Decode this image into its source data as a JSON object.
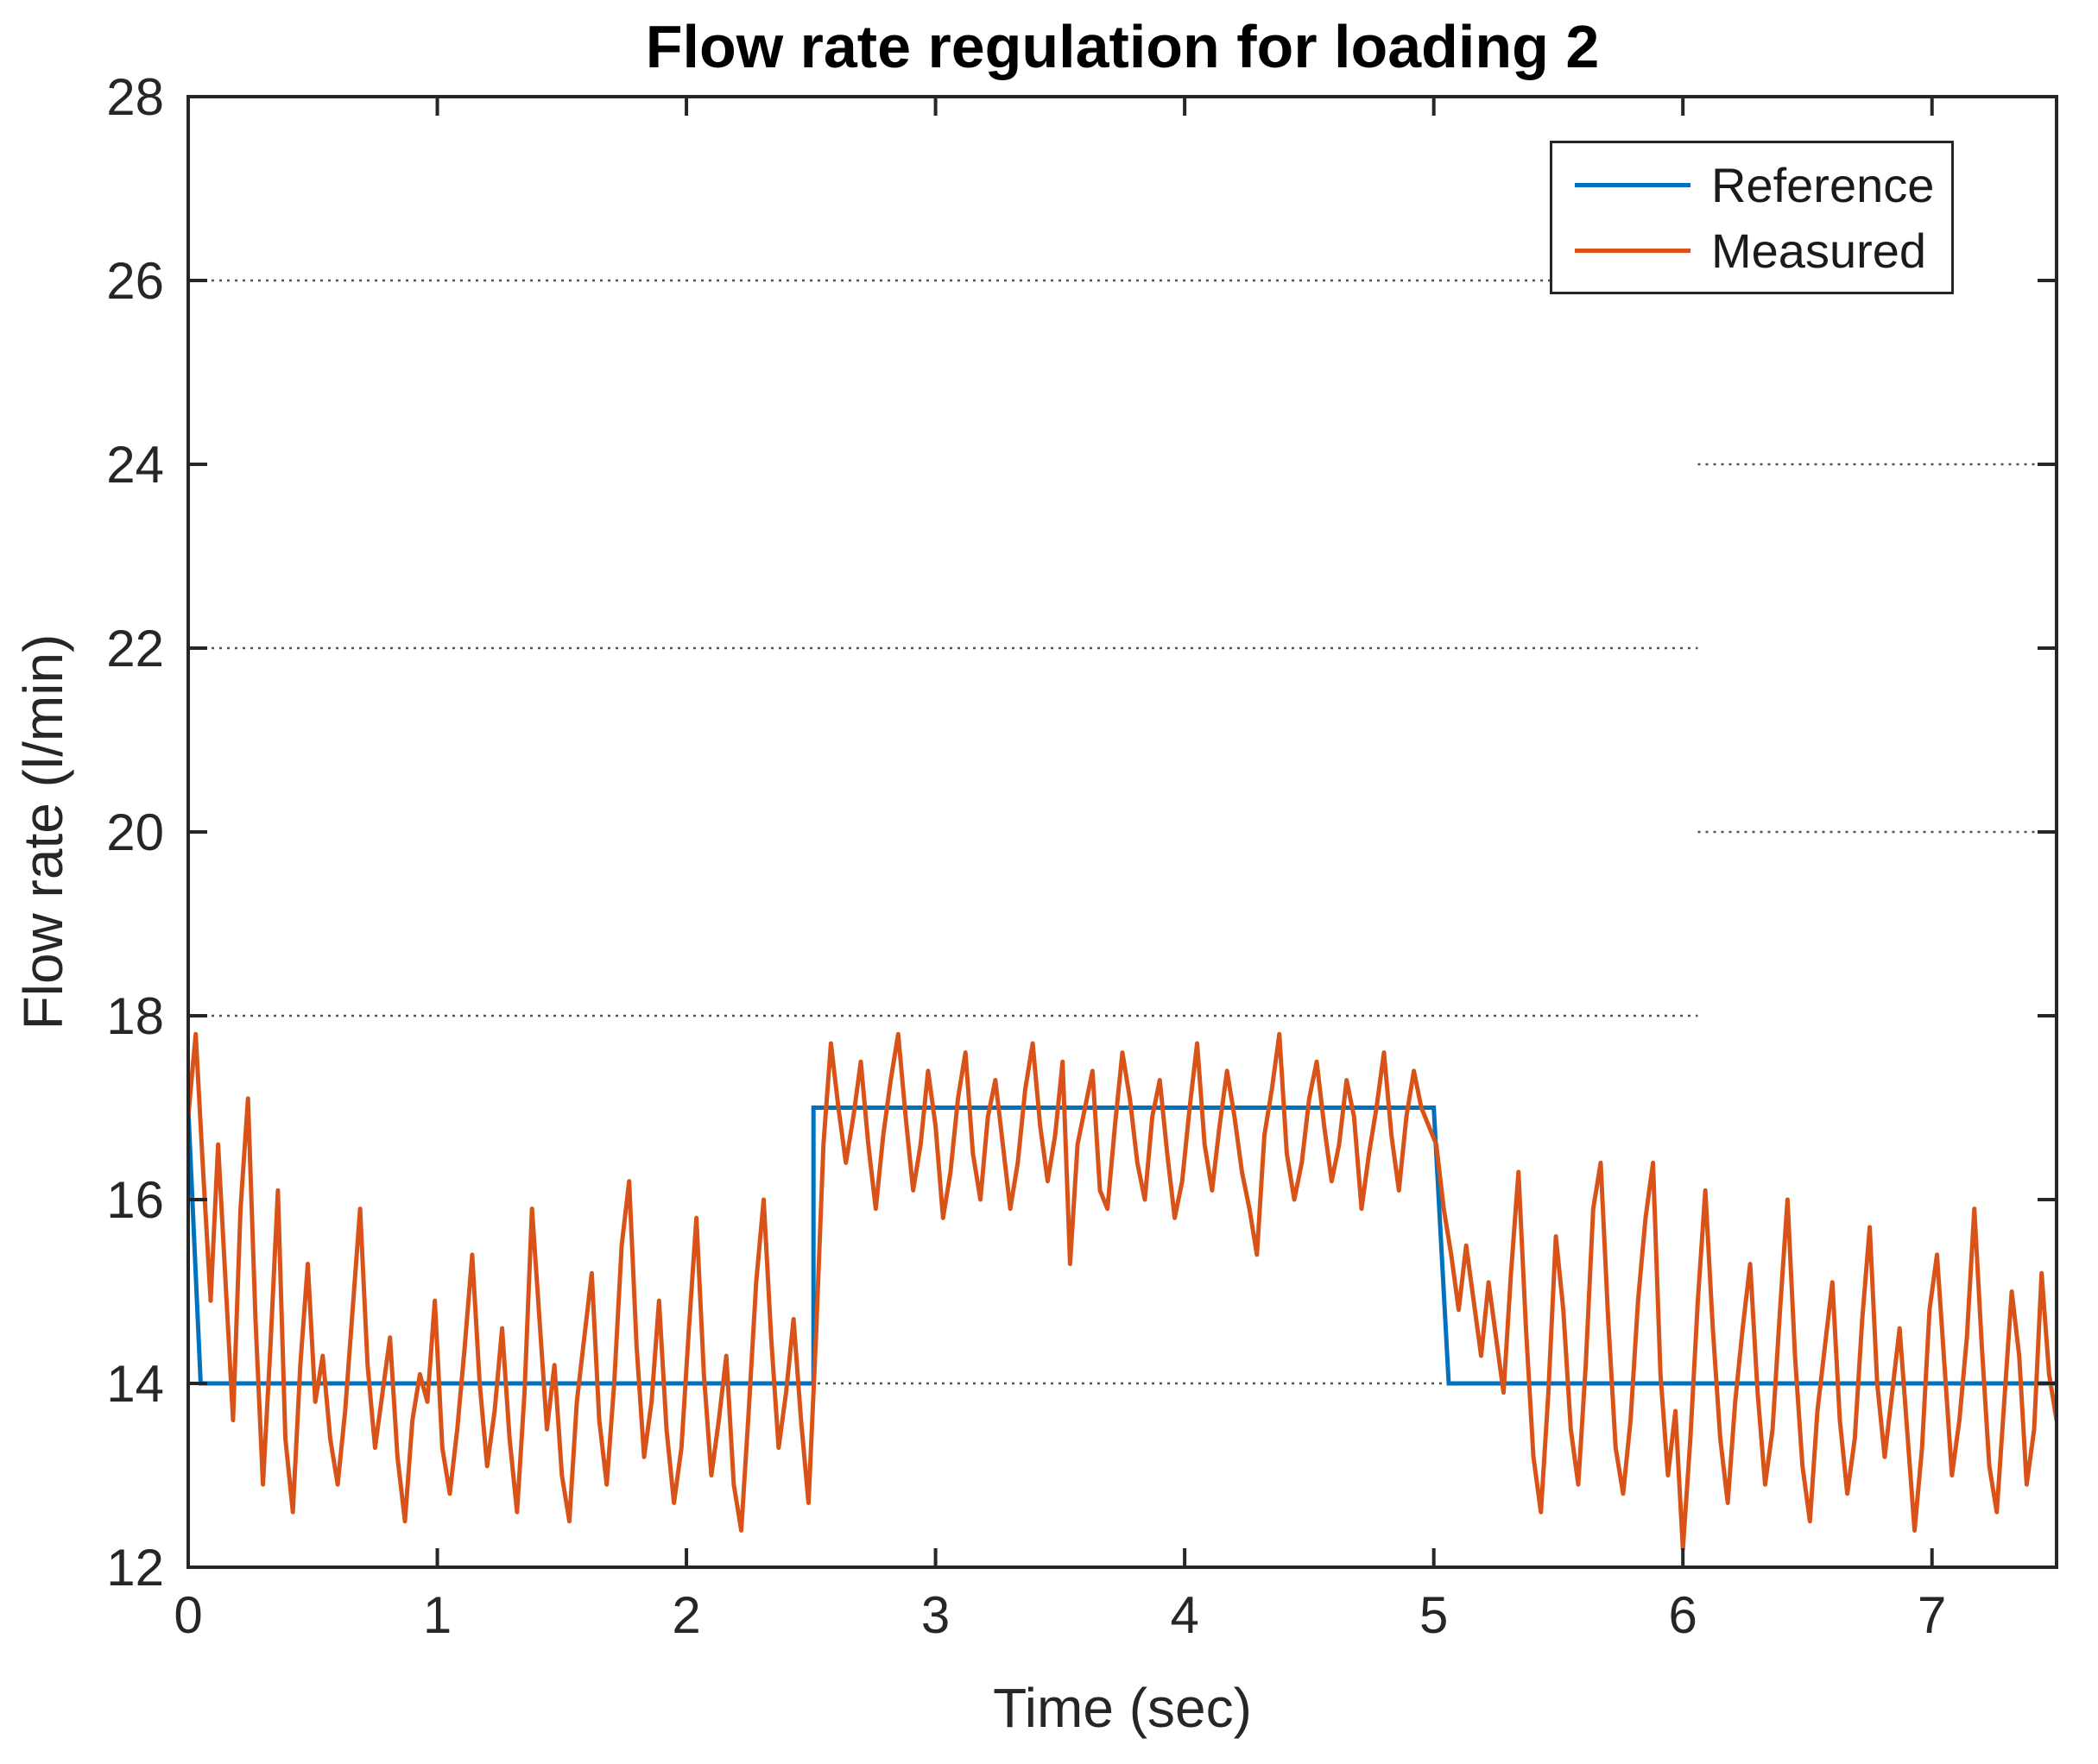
{
  "figure": {
    "background": "#ffffff"
  },
  "chart_data": {
    "type": "line",
    "title": "Flow rate regulation for loading 2",
    "xlabel": "Time (sec)",
    "ylabel": "Flow rate (l/min)",
    "xlim": [
      0,
      7.5
    ],
    "ylim": [
      12,
      28
    ],
    "xticks": [
      0,
      1,
      2,
      3,
      4,
      5,
      6,
      7
    ],
    "yticks": [
      12,
      14,
      16,
      18,
      20,
      22,
      24,
      26,
      28
    ],
    "axis_color": "#262626",
    "tick_label_color": "#262626",
    "grid_style": "dotted",
    "grid_color": "#545454",
    "grid_segments": [
      {
        "y": 26,
        "x1": 0,
        "x2": 6.06
      },
      {
        "y": 24,
        "x1": 6.06,
        "x2": 7.5
      },
      {
        "y": 22,
        "x1": 0,
        "x2": 6.06
      },
      {
        "y": 20,
        "x1": 6.06,
        "x2": 7.5
      },
      {
        "y": 18,
        "x1": 0,
        "x2": 6.06
      },
      {
        "y": 14,
        "x1": 0,
        "x2": 6.06
      }
    ],
    "legend_position": "top-right",
    "series": [
      {
        "name": "Reference",
        "color": "#0072BD",
        "points": [
          [
            0,
            17
          ],
          [
            0.05,
            14
          ],
          [
            2.51,
            14
          ],
          [
            2.51,
            17
          ],
          [
            5.0,
            17
          ],
          [
            5.06,
            14
          ],
          [
            7.5,
            14
          ]
        ]
      },
      {
        "name": "Measured",
        "color": "#D95319",
        "t0": 0,
        "dt": 0.03,
        "values": [
          16.9,
          17.8,
          16.3,
          14.9,
          16.6,
          15.1,
          13.6,
          15.9,
          17.1,
          14.7,
          12.9,
          14.4,
          16.1,
          13.4,
          12.6,
          14.2,
          15.3,
          13.8,
          14.3,
          13.4,
          12.9,
          13.7,
          14.8,
          15.9,
          14.2,
          13.3,
          13.9,
          14.5,
          13.2,
          12.5,
          13.6,
          14.1,
          13.8,
          14.9,
          13.3,
          12.8,
          13.5,
          14.4,
          15.4,
          14.0,
          13.1,
          13.7,
          14.6,
          13.4,
          12.6,
          13.9,
          15.9,
          14.7,
          13.5,
          14.2,
          13.0,
          12.5,
          13.8,
          14.5,
          15.2,
          13.6,
          12.9,
          14.0,
          15.5,
          16.2,
          14.4,
          13.2,
          13.8,
          14.9,
          13.5,
          12.7,
          13.3,
          14.6,
          15.8,
          14.1,
          13.0,
          13.6,
          14.3,
          12.9,
          12.4,
          13.7,
          15.1,
          16.0,
          14.5,
          13.3,
          13.9,
          14.7,
          13.6,
          12.7,
          14.5,
          16.6,
          17.7,
          17.0,
          16.4,
          16.9,
          17.5,
          16.6,
          15.9,
          16.7,
          17.3,
          17.8,
          16.9,
          16.1,
          16.6,
          17.4,
          16.8,
          15.8,
          16.3,
          17.1,
          17.6,
          16.5,
          16.0,
          16.9,
          17.3,
          16.6,
          15.9,
          16.4,
          17.2,
          17.7,
          16.8,
          16.2,
          16.7,
          17.5,
          15.3,
          16.6,
          17.0,
          17.4,
          16.1,
          15.9,
          16.8,
          17.6,
          17.1,
          16.4,
          16.0,
          16.9,
          17.3,
          16.5,
          15.8,
          16.2,
          17.0,
          17.7,
          16.6,
          16.1,
          16.8,
          17.4,
          16.9,
          16.3,
          15.9,
          15.4,
          16.7,
          17.2,
          17.8,
          16.5,
          16.0,
          16.4,
          17.1,
          17.5,
          16.8,
          16.2,
          16.6,
          17.3,
          16.9,
          15.9,
          16.5,
          17.0,
          17.6,
          16.7,
          16.1,
          16.9,
          17.4,
          17.0,
          16.8,
          16.6,
          15.9,
          15.4,
          14.8,
          15.5,
          14.9,
          14.3,
          15.1,
          14.5,
          13.9,
          15.2,
          16.3,
          14.6,
          13.2,
          12.6,
          13.9,
          15.6,
          14.8,
          13.5,
          12.9,
          14.2,
          15.9,
          16.4,
          14.7,
          13.3,
          12.8,
          13.6,
          14.9,
          15.8,
          16.4,
          14.1,
          13.0,
          13.7,
          12.2,
          13.4,
          14.9,
          16.1,
          14.6,
          13.4,
          12.7,
          13.8,
          14.6,
          15.3,
          13.9,
          12.9,
          13.5,
          14.8,
          16.0,
          14.3,
          13.1,
          12.5,
          13.7,
          14.4,
          15.1,
          13.6,
          12.8,
          13.4,
          14.7,
          15.7,
          14.0,
          13.2,
          13.9,
          14.6,
          13.5,
          12.4,
          13.3,
          14.8,
          15.4,
          14.2,
          13.0,
          13.6,
          14.5,
          15.9,
          14.4,
          13.1,
          12.6,
          13.8,
          15.0,
          14.3,
          12.9,
          13.5,
          15.2,
          14.1,
          13.6
        ]
      }
    ]
  }
}
